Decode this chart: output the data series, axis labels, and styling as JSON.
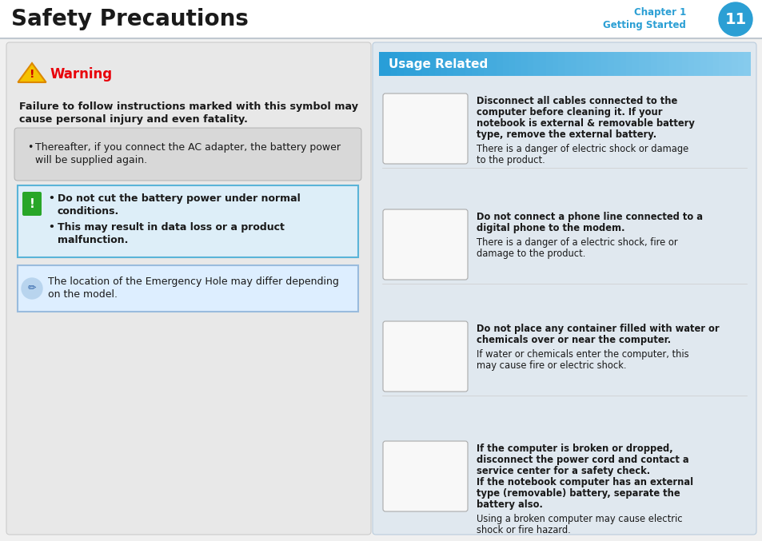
{
  "title": "Safety Precautions",
  "chapter_label": "Chapter 1",
  "chapter_sub": "Getting Started",
  "page_num": "11",
  "bg_main": "#ffffff",
  "header_line_color": "#cccccc",
  "chapter_color": "#2b9fd4",
  "page_circle_color": "#2b9fd4",
  "warning_color": "#e8000a",
  "warning_title": "Warning",
  "warning_desc_line1": "Failure to follow instructions marked with this symbol may",
  "warning_desc_line2": "cause personal injury and even fatality.",
  "bullet1_line1": "Thereafter, if you connect the AC adapter, the battery power",
  "bullet1_line2": "will be supplied again.",
  "bullet_box_bg": "#e8e8e8",
  "bullet_box_border": "#cccccc",
  "caution_box_border": "#5ab4d8",
  "caution_box_bg": "#ddeef8",
  "caution_line1a": "Do not cut the battery power under normal",
  "caution_line1b": "conditions.",
  "caution_line2a": "This may result in data loss or a product",
  "caution_line2b": "malfunction.",
  "note_box_border": "#99bbdd",
  "note_box_bg": "#ddeeff",
  "note_line1": "The location of the Emergency Hole may differ depending",
  "note_line2": "on the model.",
  "left_panel_bg": "#e8e8e8",
  "left_panel_border": "#cccccc",
  "usage_header_bg": "#3bb0e0",
  "usage_header_text": "Usage Related",
  "usage_panel_bg": "#e0e8ef",
  "usage_panel_border": "#bbccdd",
  "items": [
    {
      "bold1": "Disconnect all cables connected to the",
      "bold2": "computer before cleaning it. If your",
      "bold3": "notebook is external & removable battery",
      "bold4": "type, remove the external battery.",
      "norm1": "There is a danger of electric shock or damage",
      "norm2": "to the product."
    },
    {
      "bold1": "Do not connect a phone line connected to a",
      "bold2": "digital phone to the modem.",
      "bold3": "",
      "bold4": "",
      "norm1": "There is a danger of a electric shock, fire or",
      "norm2": "damage to the product."
    },
    {
      "bold1": "Do not place any container filled with water or",
      "bold2": "chemicals over or near the computer.",
      "bold3": "",
      "bold4": "",
      "norm1": "If water or chemicals enter the computer, this",
      "norm2": "may cause fire or electric shock."
    },
    {
      "bold1": "If the computer is broken or dropped,",
      "bold2": "disconnect the power cord and contact a",
      "bold3": "service center for a safety check.",
      "bold4": "",
      "bold5": "If the notebook computer has an external",
      "bold6": "type (removable) battery, separate the",
      "bold7": "battery also.",
      "norm1": "Using a broken computer may cause electric",
      "norm2": "shock or fire hazard."
    }
  ]
}
